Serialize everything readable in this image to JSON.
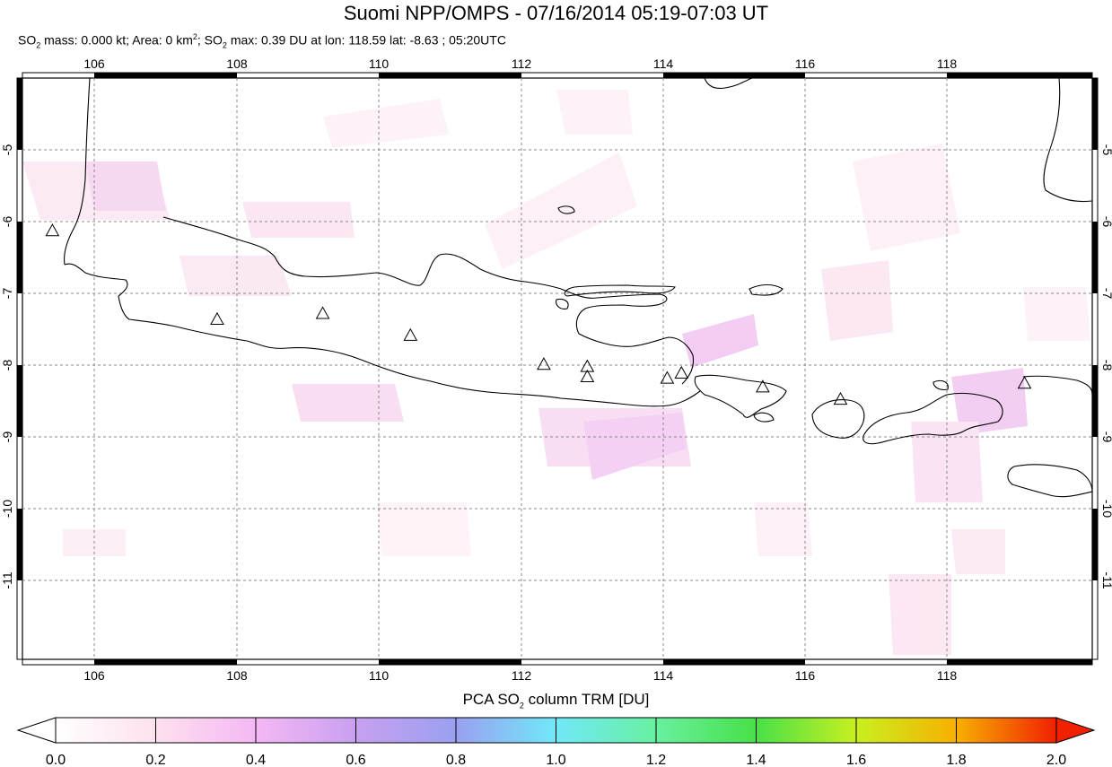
{
  "header": {
    "title": "Suomi NPP/OMPS - 07/16/2014 05:19-07:03 UT",
    "stats": {
      "so2_mass_label": "SO",
      "so2_mass_text": " mass: 0.000 kt; Area: 0 km",
      "area_sup": "2",
      "so2_max_label": "; SO",
      "so2_max_text": " max: 0.39 DU at lon: 118.59 lat: -8.63 ; 05:20UTC",
      "sub2": "2"
    }
  },
  "map": {
    "lon_range": [
      105,
      120
    ],
    "lat_range": [
      -12,
      -4
    ],
    "lon_ticks": [
      "106",
      "108",
      "110",
      "112",
      "114",
      "116",
      "118"
    ],
    "lat_ticks": [
      "-5",
      "-6",
      "-7",
      "-8",
      "-9",
      "-10",
      "-11"
    ],
    "volcano_icon": "triangle-icon",
    "volcanoes": [
      {
        "lon": 105.42,
        "lat": -6.1
      },
      {
        "lon": 107.73,
        "lat": -7.32
      },
      {
        "lon": 109.21,
        "lat": -7.24
      },
      {
        "lon": 110.44,
        "lat": -7.54
      },
      {
        "lon": 112.31,
        "lat": -7.94
      },
      {
        "lon": 112.92,
        "lat": -7.97
      },
      {
        "lon": 112.92,
        "lat": -8.11
      },
      {
        "lon": 114.04,
        "lat": -8.13
      },
      {
        "lon": 114.24,
        "lat": -8.06
      },
      {
        "lon": 115.38,
        "lat": -8.25
      },
      {
        "lon": 116.47,
        "lat": -8.42
      },
      {
        "lon": 119.05,
        "lat": -8.2
      }
    ]
  },
  "colorbar": {
    "title_prefix": "PCA SO",
    "title_sub": "2",
    "title_suffix": " column TRM [DU]",
    "min": 0.0,
    "max": 2.0,
    "tick_labels": [
      "0.0",
      "0.2",
      "0.4",
      "0.6",
      "0.8",
      "1.0",
      "1.2",
      "1.4",
      "1.6",
      "1.8",
      "2.0"
    ],
    "colors": [
      "#ffffff",
      "#fde0ee",
      "#f4b8f4",
      "#c8a0f0",
      "#9aa0f0",
      "#70e8f8",
      "#68f0a0",
      "#48e048",
      "#c8f020",
      "#f8b000",
      "#f02000"
    ]
  }
}
